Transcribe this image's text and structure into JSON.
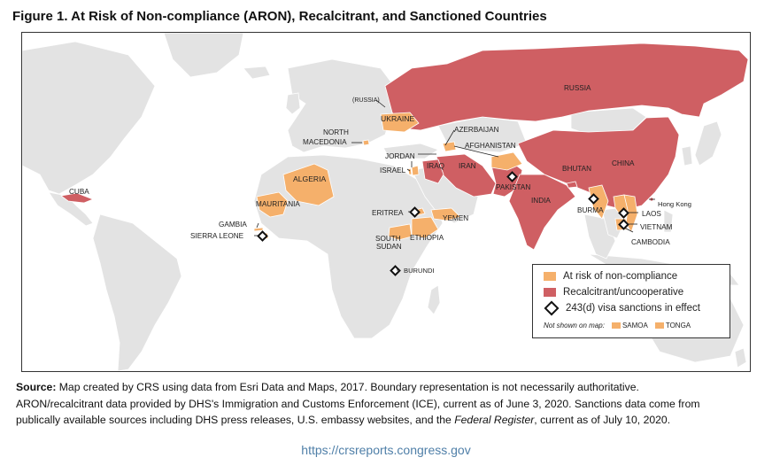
{
  "title": "Figure 1. At Risk of Non-compliance (ARON), Recalcitrant, and Sanctioned Countries",
  "colors": {
    "aron": "#f5b06b",
    "recalcitrant": "#cf5f63",
    "land": "#e3e3e3",
    "ocean": "#ffffff",
    "border": "#ffffff"
  },
  "map_labels": {
    "russia": "RUSSIA",
    "russia_kaliningrad": "(RUSSIA)",
    "ukraine": "UKRAINE",
    "azerbaijan": "AZERBAIJAN",
    "north_macedonia_1": "NORTH",
    "north_macedonia_2": "MACEDONIA",
    "afghanistan": "AFGHANISTAN",
    "jordan": "JORDAN",
    "israel": "ISRAEL",
    "iraq": "IRAQ",
    "iran": "IRAN",
    "pakistan": "PAKISTAN",
    "bhutan": "BHUTAN",
    "china": "CHINA",
    "india": "INDIA",
    "burma": "BURMA",
    "hong_kong": "Hong Kong",
    "laos": "LAOS",
    "vietnam": "VIETNAM",
    "cambodia": "CAMBODIA",
    "cuba": "CUBA",
    "algeria": "ALGERIA",
    "mauritania": "MAURITANIA",
    "gambia": "GAMBIA",
    "sierra_leone": "SIERRA LEONE",
    "eritrea": "ERITREA",
    "yemen": "YEMEN",
    "south_sudan_1": "SOUTH",
    "south_sudan_2": "SUDAN",
    "ethiopia": "ETHIOPIA",
    "burundi": "BURUNDI"
  },
  "legend": {
    "aron": "At risk of non-compliance",
    "recalcitrant": "Recalcitrant/uncooperative",
    "sanctions": "243(d) visa sanctions in effect",
    "not_shown": "Not shown on map:",
    "samoa": "SAMOA",
    "tonga": "TONGA"
  },
  "source": {
    "label": "Source:",
    "line1": "Map created by CRS using data from Esri Data and Maps, 2017. Boundary representation is not necessarily authoritative.",
    "line2": "ARON/recalcitrant data provided by DHS's Immigration and Customs Enforcement (ICE), current as of June 3, 2020. Sanctions data come from",
    "line3a": "publically available sources including DHS press releases, U.S. embassy websites, and the ",
    "line3_italic": "Federal Register",
    "line3b": ", current as of July 10, 2020."
  },
  "url": "https://crsreports.congress.gov"
}
